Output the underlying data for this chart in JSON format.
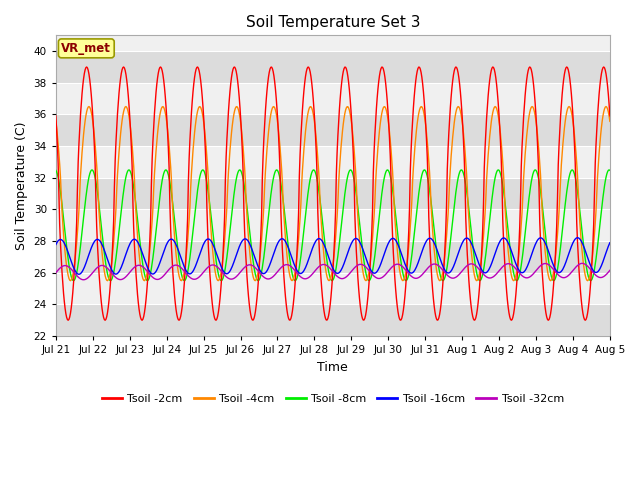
{
  "title": "Soil Temperature Set 3",
  "xlabel": "Time",
  "ylabel": "Soil Temperature (C)",
  "ylim": [
    22,
    41
  ],
  "yticks": [
    22,
    24,
    26,
    28,
    30,
    32,
    34,
    36,
    38,
    40
  ],
  "colors": {
    "Tsoil -2cm": "#FF0000",
    "Tsoil -4cm": "#FF8800",
    "Tsoil -8cm": "#00EE00",
    "Tsoil -16cm": "#0000FF",
    "Tsoil -32cm": "#BB00BB"
  },
  "legend_labels": [
    "Tsoil -2cm",
    "Tsoil -4cm",
    "Tsoil -8cm",
    "Tsoil -16cm",
    "Tsoil -32cm"
  ],
  "annotation": "VR_met",
  "fig_bg": "#FFFFFF",
  "plot_bg_light": "#F0F0F0",
  "plot_bg_dark": "#DCDCDC",
  "grid_color": "#FFFFFF",
  "n_days": 15
}
